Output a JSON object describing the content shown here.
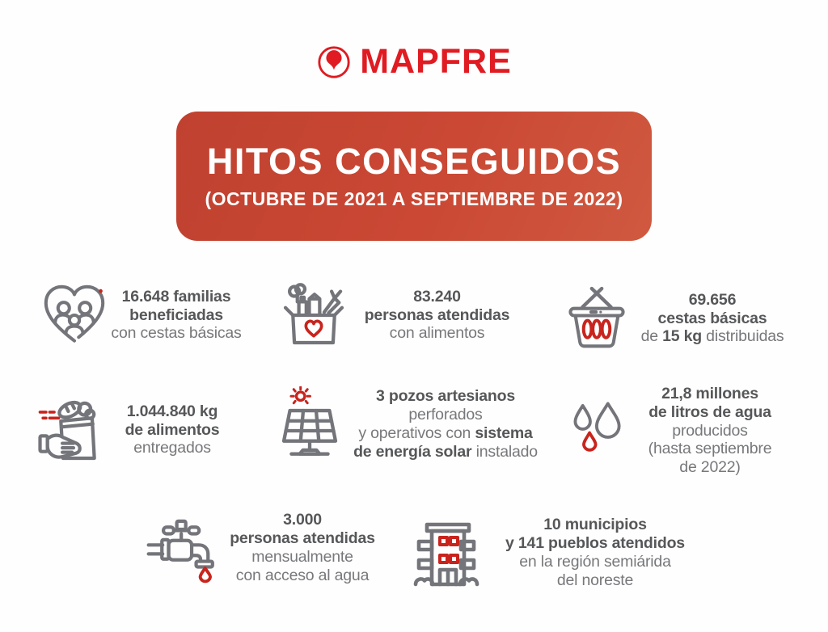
{
  "brand": {
    "name": "MAPFRE",
    "color": "#e01b22",
    "logo_icon": "mapfre-emblem-icon"
  },
  "banner": {
    "title": "HITOS CONSEGUIDOS",
    "subtitle": "(OCTUBRE DE 2021 A SEPTIEMBRE DE 2022)",
    "background_from": "#c04130",
    "background_to": "#d05940",
    "text_color": "#ffffff"
  },
  "colors": {
    "icon_gray": "#74757a",
    "accent_red": "#c8241d",
    "text_bold": "#565759",
    "text_regular": "#77787b",
    "background": "#fefefe"
  },
  "stats": [
    {
      "id": "familias-beneficiadas",
      "icon": "heart-family-icon",
      "lines": [
        [
          {
            "t": "16.648 familias",
            "b": true
          }
        ],
        [
          {
            "t": "beneficiadas",
            "b": true
          }
        ],
        [
          {
            "t": "con cestas básicas",
            "b": false
          }
        ]
      ]
    },
    {
      "id": "personas-atendidas-alimentos",
      "icon": "donation-box-icon",
      "lines": [
        [
          {
            "t": "83.240",
            "b": true
          }
        ],
        [
          {
            "t": "personas atendidas",
            "b": true
          }
        ],
        [
          {
            "t": "con alimentos",
            "b": false
          }
        ]
      ]
    },
    {
      "id": "cestas-basicas-distribuidas",
      "icon": "basket-icon",
      "lines": [
        [
          {
            "t": "69.656",
            "b": true
          }
        ],
        [
          {
            "t": "cestas básicas",
            "b": true
          }
        ],
        [
          {
            "t": "de ",
            "b": false
          },
          {
            "t": "15 kg",
            "b": true
          },
          {
            "t": " distribuidas",
            "b": false
          }
        ]
      ]
    },
    {
      "id": "kg-alimentos-entregados",
      "icon": "hand-bag-icon",
      "lines": [
        [
          {
            "t": "1.044.840 kg",
            "b": true
          }
        ],
        [
          {
            "t": "de alimentos",
            "b": true
          }
        ],
        [
          {
            "t": "entregados",
            "b": false
          }
        ]
      ]
    },
    {
      "id": "pozos-artesianos",
      "icon": "solar-panel-icon",
      "lines": [
        [
          {
            "t": "3 pozos artesianos",
            "b": true
          }
        ],
        [
          {
            "t": "perforados",
            "b": false
          }
        ],
        [
          {
            "t": "y operativos con ",
            "b": false
          },
          {
            "t": "sistema",
            "b": true
          }
        ],
        [
          {
            "t": "de energía solar",
            "b": true
          },
          {
            "t": " instalado",
            "b": false
          }
        ]
      ]
    },
    {
      "id": "litros-agua-producidos",
      "icon": "water-drops-icon",
      "lines": [
        [
          {
            "t": "21,8 millones",
            "b": true
          }
        ],
        [
          {
            "t": "de litros de agua",
            "b": true
          }
        ],
        [
          {
            "t": "producidos",
            "b": false
          }
        ],
        [
          {
            "t": "(hasta septiembre",
            "b": false
          }
        ],
        [
          {
            "t": "de 2022)",
            "b": false
          }
        ]
      ]
    },
    {
      "id": "personas-acceso-agua",
      "icon": "faucet-icon",
      "lines": [
        [
          {
            "t": "3.000",
            "b": true
          }
        ],
        [
          {
            "t": "personas atendidas",
            "b": true
          }
        ],
        [
          {
            "t": "mensualmente",
            "b": false
          }
        ],
        [
          {
            "t": "con acceso al agua",
            "b": false
          }
        ]
      ]
    },
    {
      "id": "municipios-pueblos",
      "icon": "building-icon",
      "lines": [
        [
          {
            "t": "10 municipios",
            "b": true
          }
        ],
        [
          {
            "t": "y 141 pueblos atendidos",
            "b": true
          }
        ],
        [
          {
            "t": "en la región semiárida",
            "b": false
          }
        ],
        [
          {
            "t": "del noreste",
            "b": false
          }
        ]
      ]
    }
  ]
}
